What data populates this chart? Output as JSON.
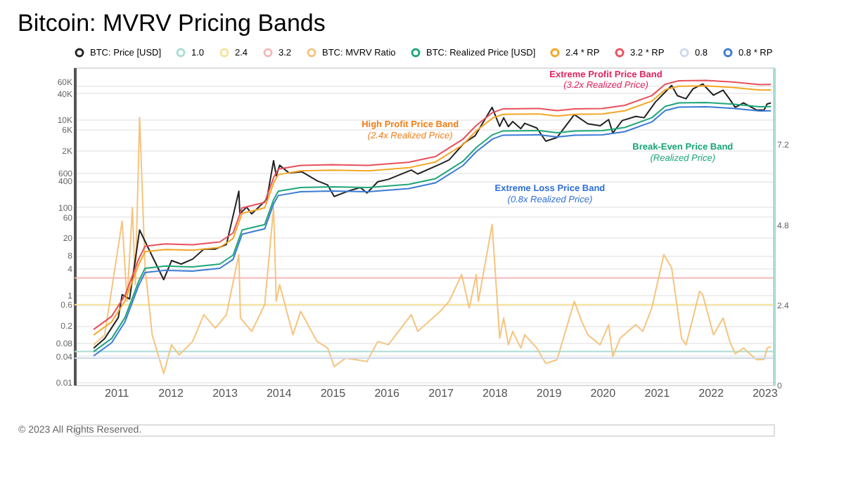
{
  "chart_data": {
    "type": "line",
    "title": "Bitcoin: MVRV Pricing Bands",
    "log": "y",
    "grid": "y",
    "legend": "top",
    "marker": "none",
    "line_style": "solid",
    "xlim": [
      "2010-03-25",
      "2023-03-05"
    ],
    "xticks": [
      "2011",
      "2012",
      "2013",
      "2014",
      "2015",
      "2016",
      "2017",
      "2018",
      "2019",
      "2020",
      "2021",
      "2022",
      "2023"
    ],
    "ylim": [
      0.0087,
      155000
    ],
    "yticks": [
      0.01,
      0.04,
      0.08,
      0.2,
      0.6,
      1,
      4,
      8,
      20,
      60,
      100,
      400,
      600,
      {
        "value": 2000,
        "label": "2K"
      },
      {
        "value": 6000,
        "label": "6K"
      },
      {
        "value": 10000,
        "label": "10K"
      },
      {
        "value": 40000,
        "label": "40K"
      },
      {
        "value": 60000,
        "label": "60K"
      }
    ],
    "y2lim": [
      0,
      9.5
    ],
    "y2ticks": [
      0,
      2.4,
      4.8,
      7.2
    ],
    "series": [
      {
        "name": "BTC: Price [USD]",
        "color": "#222222",
        "x": [
          "2010-08-01",
          "2010-10-15",
          "2011-01-15",
          "2011-02-10",
          "2011-04-01",
          "2011-06-08",
          "2011-08-15",
          "2011-11-18",
          "2012-01-10",
          "2012-03-15",
          "2012-06-01",
          "2012-08-15",
          "2012-11-01",
          "2013-01-15",
          "2013-04-09",
          "2013-04-16",
          "2013-06-01",
          "2013-07-05",
          "2013-10-15",
          "2013-11-30",
          "2013-12-18",
          "2014-01-10",
          "2014-03-15",
          "2014-06-10",
          "2014-09-20",
          "2014-12-01",
          "2015-01-14",
          "2015-04-15",
          "2015-07-10",
          "2015-08-24",
          "2015-11-05",
          "2016-01-15",
          "2016-06-18",
          "2016-08-01",
          "2016-12-31",
          "2017-03-01",
          "2017-06-10",
          "2017-08-25",
          "2017-12-17",
          "2018-02-06",
          "2018-03-05",
          "2018-04-06",
          "2018-05-05",
          "2018-06-29",
          "2018-07-25",
          "2018-10-15",
          "2018-12-15",
          "2019-03-01",
          "2019-06-26",
          "2019-09-25",
          "2019-12-17",
          "2020-02-13",
          "2020-03-12",
          "2020-05-15",
          "2020-08-15",
          "2020-10-10",
          "2020-12-25",
          "2021-04-14",
          "2021-05-23",
          "2021-07-20",
          "2021-09-05",
          "2021-11-10",
          "2022-01-22",
          "2022-03-28",
          "2022-05-12",
          "2022-06-18",
          "2022-08-14",
          "2022-11-09",
          "2022-12-30",
          "2023-01-20",
          "2023-02-15"
        ],
        "values": [
          0.06,
          0.1,
          0.3,
          1.0,
          0.8,
          30,
          10,
          2.2,
          6,
          5,
          6.5,
          11,
          11,
          14,
          230,
          70,
          100,
          70,
          150,
          1150,
          520,
          900,
          600,
          640,
          400,
          320,
          175,
          230,
          280,
          210,
          380,
          430,
          700,
          570,
          960,
          1200,
          2900,
          4300,
          19000,
          7000,
          11000,
          6900,
          9000,
          6200,
          8200,
          6400,
          3200,
          3900,
          13000,
          8000,
          7200,
          10000,
          4900,
          9500,
          11800,
          11000,
          25000,
          60000,
          35000,
          29800,
          50000,
          65000,
          36000,
          47000,
          29000,
          19000,
          24000,
          16500,
          16500,
          22700,
          24000
        ]
      },
      {
        "name": "1.0",
        "axis": "y2",
        "color": "#a9dcd3",
        "x": [
          "2010-03-25",
          "2023-03-05"
        ],
        "values": [
          1.0,
          1.0
        ]
      },
      {
        "name": "2.4",
        "axis": "y2",
        "color": "#f6e39a",
        "x": [
          "2010-03-25",
          "2023-03-05"
        ],
        "values": [
          2.4,
          2.4
        ]
      },
      {
        "name": "3.2",
        "axis": "y2",
        "color": "#f3b9b9",
        "x": [
          "2010-03-25",
          "2023-03-05"
        ],
        "values": [
          3.2,
          3.2
        ]
      },
      {
        "name": "BTC: MVRV Ratio",
        "axis": "y2",
        "color": "#f5c47f",
        "x": [
          "2010-08-01",
          "2010-10-15",
          "2011-02-10",
          "2011-03-15",
          "2011-04-20",
          "2011-05-10",
          "2011-06-08",
          "2011-07-15",
          "2011-09-01",
          "2011-11-18",
          "2012-01-10",
          "2012-03-01",
          "2012-06-01",
          "2012-08-15",
          "2012-11-01",
          "2013-01-15",
          "2013-04-09",
          "2013-04-20",
          "2013-07-05",
          "2013-10-01",
          "2013-11-30",
          "2013-12-18",
          "2014-01-10",
          "2014-04-10",
          "2014-06-01",
          "2014-09-20",
          "2014-12-01",
          "2015-01-14",
          "2015-04-01",
          "2015-08-24",
          "2015-11-05",
          "2016-01-15",
          "2016-06-18",
          "2016-08-01",
          "2016-12-31",
          "2017-03-01",
          "2017-05-25",
          "2017-07-15",
          "2017-09-01",
          "2017-09-15",
          "2017-12-17",
          "2018-02-06",
          "2018-03-05",
          "2018-04-06",
          "2018-05-05",
          "2018-06-29",
          "2018-07-25",
          "2018-10-15",
          "2018-12-15",
          "2019-03-01",
          "2019-06-26",
          "2019-08-15",
          "2019-09-25",
          "2019-12-17",
          "2020-02-13",
          "2020-03-12",
          "2020-05-01",
          "2020-08-15",
          "2020-10-01",
          "2020-12-01",
          "2021-02-20",
          "2021-04-14",
          "2021-06-20",
          "2021-07-20",
          "2021-09-05",
          "2021-10-20",
          "2021-11-10",
          "2022-01-22",
          "2022-03-28",
          "2022-05-12",
          "2022-06-18",
          "2022-08-14",
          "2022-11-09",
          "2022-12-30",
          "2023-01-20",
          "2023-02-15"
        ],
        "values": [
          1.2,
          1.5,
          4.9,
          2.5,
          5.3,
          3.0,
          8.0,
          3.5,
          1.5,
          0.34,
          1.2,
          0.9,
          1.3,
          2.1,
          1.7,
          2.1,
          3.9,
          2.0,
          1.6,
          2.4,
          5.3,
          2.5,
          3.0,
          1.5,
          2.2,
          1.3,
          1.1,
          0.55,
          0.8,
          0.7,
          1.3,
          1.2,
          2.1,
          1.6,
          2.2,
          2.5,
          3.3,
          2.3,
          3.3,
          2.5,
          4.8,
          1.4,
          2.0,
          1.2,
          1.6,
          1.1,
          1.5,
          1.1,
          0.64,
          0.75,
          2.5,
          1.9,
          1.5,
          1.2,
          1.8,
          0.85,
          1.4,
          1.8,
          1.6,
          2.3,
          3.9,
          3.5,
          1.4,
          1.2,
          2.0,
          2.8,
          2.7,
          1.5,
          2.0,
          1.3,
          0.93,
          1.1,
          0.75,
          0.76,
          1.1,
          1.15
        ]
      },
      {
        "name": "BTC: Realized Price [USD]",
        "color": "#1fa67a",
        "x": [
          "2010-08-01",
          "2010-12-01",
          "2011-03-01",
          "2011-06-01",
          "2011-07-15",
          "2011-12-01",
          "2012-06-01",
          "2012-12-01",
          "2013-03-01",
          "2013-05-01",
          "2013-10-01",
          "2013-12-01",
          "2014-01-01",
          "2014-06-01",
          "2015-01-01",
          "2015-09-01",
          "2016-06-01",
          "2016-12-01",
          "2017-06-01",
          "2017-09-01",
          "2017-12-20",
          "2018-03-01",
          "2018-11-01",
          "2019-03-01",
          "2019-07-01",
          "2020-01-01",
          "2020-06-01",
          "2020-12-01",
          "2021-03-01",
          "2021-06-01",
          "2021-12-01",
          "2022-06-01",
          "2022-12-01",
          "2023-02-15"
        ],
        "values": [
          0.05,
          0.1,
          0.3,
          2.0,
          4.0,
          4.5,
          4.3,
          5.0,
          8,
          30,
          40,
          150,
          230,
          280,
          290,
          280,
          330,
          450,
          1100,
          2300,
          4500,
          5500,
          5600,
          5000,
          5500,
          5600,
          6600,
          11000,
          20000,
          24000,
          24500,
          22500,
          19600,
          19800
        ]
      },
      {
        "name": "2.4 * RP",
        "color": "#f5a623",
        "x": [
          "2010-08-01",
          "2010-12-01",
          "2011-03-01",
          "2011-06-01",
          "2011-07-15",
          "2011-12-01",
          "2012-06-01",
          "2012-12-01",
          "2013-03-01",
          "2013-05-01",
          "2013-10-01",
          "2013-12-01",
          "2014-01-01",
          "2014-06-01",
          "2015-01-01",
          "2015-09-01",
          "2016-06-01",
          "2016-12-01",
          "2017-06-01",
          "2017-09-01",
          "2017-12-20",
          "2018-03-01",
          "2018-11-01",
          "2019-03-01",
          "2019-07-01",
          "2020-01-01",
          "2020-06-01",
          "2020-12-01",
          "2021-03-01",
          "2021-06-01",
          "2021-12-01",
          "2022-06-01",
          "2022-12-01",
          "2023-02-15"
        ],
        "values": [
          0.12,
          0.24,
          0.72,
          4.8,
          9.6,
          10.8,
          10.32,
          12,
          19.2,
          72,
          96,
          360,
          552,
          672,
          696,
          672,
          792,
          1080,
          2640,
          5520,
          10800,
          13200,
          13440,
          12000,
          13200,
          13440,
          15840,
          26400,
          48000,
          57600,
          58800,
          54000,
          47040,
          47520
        ]
      },
      {
        "name": "3.2 * RP",
        "color": "#e8505b",
        "x": [
          "2010-08-01",
          "2010-12-01",
          "2011-03-01",
          "2011-06-01",
          "2011-07-15",
          "2011-12-01",
          "2012-06-01",
          "2012-12-01",
          "2013-03-01",
          "2013-05-01",
          "2013-10-01",
          "2013-12-01",
          "2014-01-01",
          "2014-06-01",
          "2015-01-01",
          "2015-09-01",
          "2016-06-01",
          "2016-12-01",
          "2017-06-01",
          "2017-09-01",
          "2017-12-20",
          "2018-03-01",
          "2018-11-01",
          "2019-03-01",
          "2019-07-01",
          "2020-01-01",
          "2020-06-01",
          "2020-12-01",
          "2021-03-01",
          "2021-06-01",
          "2021-12-01",
          "2022-06-01",
          "2022-12-01",
          "2023-02-15"
        ],
        "values": [
          0.16,
          0.32,
          0.96,
          6.4,
          12.8,
          14.4,
          13.76,
          16,
          25.6,
          96,
          128,
          480,
          736,
          896,
          928,
          896,
          1056,
          1440,
          3520,
          7360,
          14400,
          17600,
          17920,
          16000,
          17600,
          17920,
          21120,
          35200,
          64000,
          76800,
          78400,
          72000,
          62720,
          63360
        ]
      },
      {
        "name": "0.8",
        "axis": "y2",
        "color": "#cdd9ec",
        "x": [
          "2010-03-25",
          "2023-03-05"
        ],
        "values": [
          0.8,
          0.8
        ]
      },
      {
        "name": "0.8 * RP",
        "color": "#3a7bd5",
        "x": [
          "2010-08-01",
          "2010-12-01",
          "2011-03-01",
          "2011-06-01",
          "2011-07-15",
          "2011-12-01",
          "2012-06-01",
          "2012-12-01",
          "2013-03-01",
          "2013-05-01",
          "2013-10-01",
          "2013-12-01",
          "2014-01-01",
          "2014-06-01",
          "2015-01-01",
          "2015-09-01",
          "2016-06-01",
          "2016-12-01",
          "2017-06-01",
          "2017-09-01",
          "2017-12-20",
          "2018-03-01",
          "2018-11-01",
          "2019-03-01",
          "2019-07-01",
          "2020-01-01",
          "2020-06-01",
          "2020-12-01",
          "2021-03-01",
          "2021-06-01",
          "2021-12-01",
          "2022-06-01",
          "2022-12-01",
          "2023-02-15"
        ],
        "values": [
          0.04,
          0.08,
          0.24,
          1.6,
          3.2,
          3.6,
          3.44,
          4.0,
          6.4,
          24,
          32,
          120,
          184,
          224,
          232,
          224,
          264,
          360,
          880,
          1840,
          3600,
          4400,
          4480,
          4000,
          4400,
          4480,
          5280,
          8800,
          16000,
          19200,
          19600,
          18000,
          15680,
          15840
        ]
      }
    ],
    "annotations": [
      "Extreme Profit Price Band",
      "(3.2x Realized Price)",
      "High Profit Price Band",
      "(2.4x Realized Price)",
      "Extreme Loss Price Band",
      "(0.8x Realized Price)",
      "Break-Even Price Band",
      "(Realized Price)",
      "© 2023 All Rights Reserved."
    ]
  }
}
